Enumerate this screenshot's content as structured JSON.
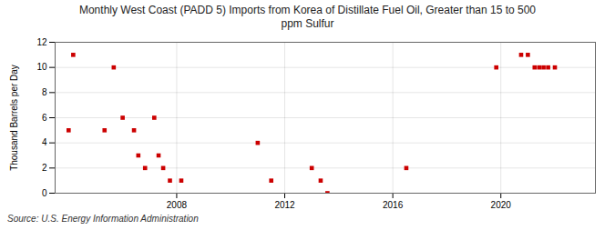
{
  "chart_data": {
    "type": "scatter",
    "title": "Monthly West Coast (PADD 5) Imports from Korea of Distillate Fuel Oil, Greater than 15 to 500\nppm Sulfur",
    "ylabel": "Thousand Barrels per Day",
    "source": "Source: U.S. Energy Information Administration",
    "x": [
      2004.0,
      2004.17,
      2005.33,
      2005.67,
      2006.0,
      2006.42,
      2006.58,
      2006.83,
      2007.17,
      2007.33,
      2007.5,
      2007.75,
      2008.17,
      2011.0,
      2011.5,
      2013.0,
      2013.33,
      2013.58,
      2016.5,
      2019.83,
      2020.75,
      2021.0,
      2021.25,
      2021.42,
      2021.58,
      2021.75,
      2022.0
    ],
    "values": [
      5,
      11,
      5,
      10,
      6,
      5,
      3,
      2,
      6,
      3,
      2,
      1,
      1,
      4,
      1,
      2,
      1,
      0,
      2,
      10,
      11,
      11,
      10,
      10,
      10,
      10,
      10
    ],
    "color": "#cc0000",
    "marker": "square",
    "xlim": [
      2003.5,
      2023.5
    ],
    "xticks": [
      2008,
      2012,
      2016,
      2020
    ],
    "ylim": [
      0,
      12
    ],
    "yticks": [
      0,
      2,
      4,
      6,
      8,
      10,
      12
    ],
    "grid": true
  }
}
